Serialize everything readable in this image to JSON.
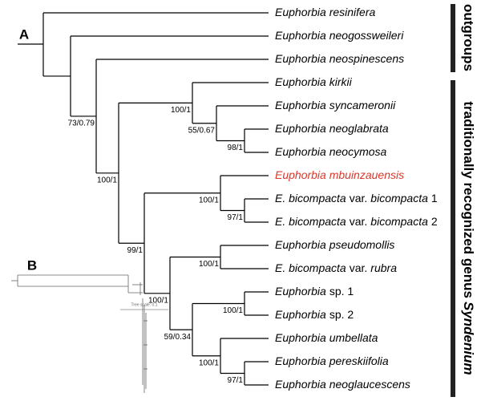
{
  "panels": {
    "a": "A",
    "b": "B"
  },
  "leaves": [
    {
      "parts": [
        {
          "text": "Euphorbia resinifera",
          "italic": true
        }
      ]
    },
    {
      "parts": [
        {
          "text": "Euphorbia neogossweileri",
          "italic": true
        }
      ]
    },
    {
      "parts": [
        {
          "text": "Euphorbia neospinescens",
          "italic": true
        }
      ]
    },
    {
      "parts": [
        {
          "text": "Euphorbia kirkii",
          "italic": true
        }
      ]
    },
    {
      "parts": [
        {
          "text": "Euphorbia syncameronii",
          "italic": true
        }
      ]
    },
    {
      "parts": [
        {
          "text": "Euphorbia neoglabrata",
          "italic": true
        }
      ]
    },
    {
      "parts": [
        {
          "text": "Euphorbia neocymosa",
          "italic": true
        }
      ]
    },
    {
      "parts": [
        {
          "text": "Euphorbia mbuinzauensis",
          "italic": true
        }
      ],
      "color": "#d9382b"
    },
    {
      "parts": [
        {
          "text": "E. bicompacta",
          "italic": true
        },
        {
          "text": "var.",
          "italic": false
        },
        {
          "text": "bicompacta",
          "italic": true
        },
        {
          "text": "1",
          "italic": false
        }
      ]
    },
    {
      "parts": [
        {
          "text": "E. bicompacta",
          "italic": true
        },
        {
          "text": "var.",
          "italic": false
        },
        {
          "text": "bicompacta",
          "italic": true
        },
        {
          "text": "2",
          "italic": false
        }
      ]
    },
    {
      "parts": [
        {
          "text": "Euphorbia pseudomollis",
          "italic": true
        }
      ]
    },
    {
      "parts": [
        {
          "text": "E. bicompacta",
          "italic": true
        },
        {
          "text": "var.",
          "italic": false
        },
        {
          "text": "rubra",
          "italic": true
        }
      ]
    },
    {
      "parts": [
        {
          "text": "Euphorbia",
          "italic": true
        },
        {
          "text": "sp. 1",
          "italic": false
        }
      ]
    },
    {
      "parts": [
        {
          "text": "Euphorbia",
          "italic": true
        },
        {
          "text": "sp. 2",
          "italic": false
        }
      ]
    },
    {
      "parts": [
        {
          "text": "Euphorbia umbellata",
          "italic": true
        }
      ]
    },
    {
      "parts": [
        {
          "text": "Euphorbia pereskiifolia",
          "italic": true
        }
      ]
    },
    {
      "parts": [
        {
          "text": "Euphorbia neoglaucescens",
          "italic": true
        }
      ]
    }
  ],
  "support": [
    "73/0.79",
    "100/1",
    "100/1",
    "55/0.67",
    "98/1",
    "99/1",
    "100/1",
    "97/1",
    "100/1",
    "100/1",
    "59/0.34",
    "100/1",
    "100/1",
    "97/1"
  ],
  "groups": [
    {
      "parts": [
        {
          "text": "outgroups",
          "italic": false
        }
      ]
    },
    {
      "parts": [
        {
          "text": "traditionally recognized genus",
          "italic": false
        },
        {
          "text": "Syndenium",
          "italic": true
        }
      ]
    }
  ],
  "inset_scale": "Tree scale: 0.1"
}
